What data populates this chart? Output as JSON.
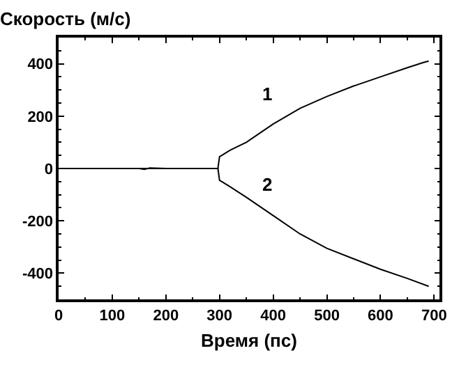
{
  "chart_data": {
    "type": "line",
    "ylabel": "Скорость (м/с)",
    "xlabel": "Время (пс)",
    "xlim": [
      0,
      710
    ],
    "xticks": [
      0,
      100,
      200,
      300,
      400,
      500,
      600,
      700
    ],
    "ylim": [
      -500,
      500
    ],
    "yticks": [
      -400,
      -200,
      0,
      200,
      400
    ],
    "marker": "none",
    "line_style": "solid",
    "series": [
      {
        "name": "1",
        "color": "#000000",
        "x": [
          0,
          50,
          100,
          150,
          160,
          170,
          200,
          250,
          297,
          300,
          320,
          350,
          400,
          450,
          500,
          550,
          600,
          650,
          680,
          690
        ],
        "values": [
          0,
          0,
          0,
          0,
          -3,
          2,
          0,
          0,
          0,
          45,
          70,
          100,
          170,
          230,
          275,
          315,
          350,
          385,
          405,
          410
        ]
      },
      {
        "name": "2",
        "color": "#000000",
        "x": [
          0,
          50,
          100,
          150,
          200,
          250,
          297,
          300,
          320,
          350,
          400,
          450,
          500,
          550,
          600,
          650,
          690
        ],
        "values": [
          0,
          0,
          0,
          0,
          0,
          0,
          0,
          -45,
          -70,
          -110,
          -180,
          -250,
          -305,
          -345,
          -385,
          -420,
          -450
        ]
      }
    ]
  }
}
